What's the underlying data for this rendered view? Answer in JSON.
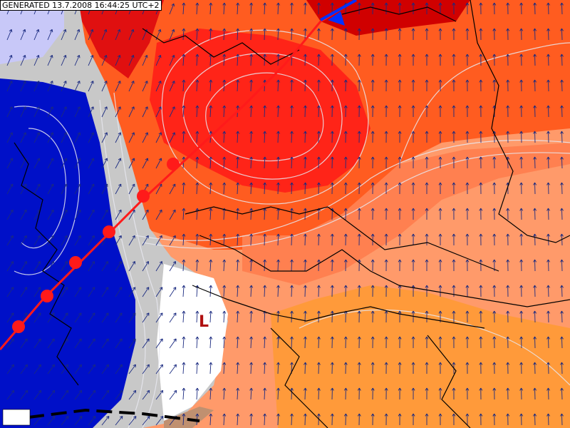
{
  "header": {
    "generated": "GENERATED 13.7.2008 16:44:25 UTC+2"
  },
  "map": {
    "low_label": "L"
  }
}
